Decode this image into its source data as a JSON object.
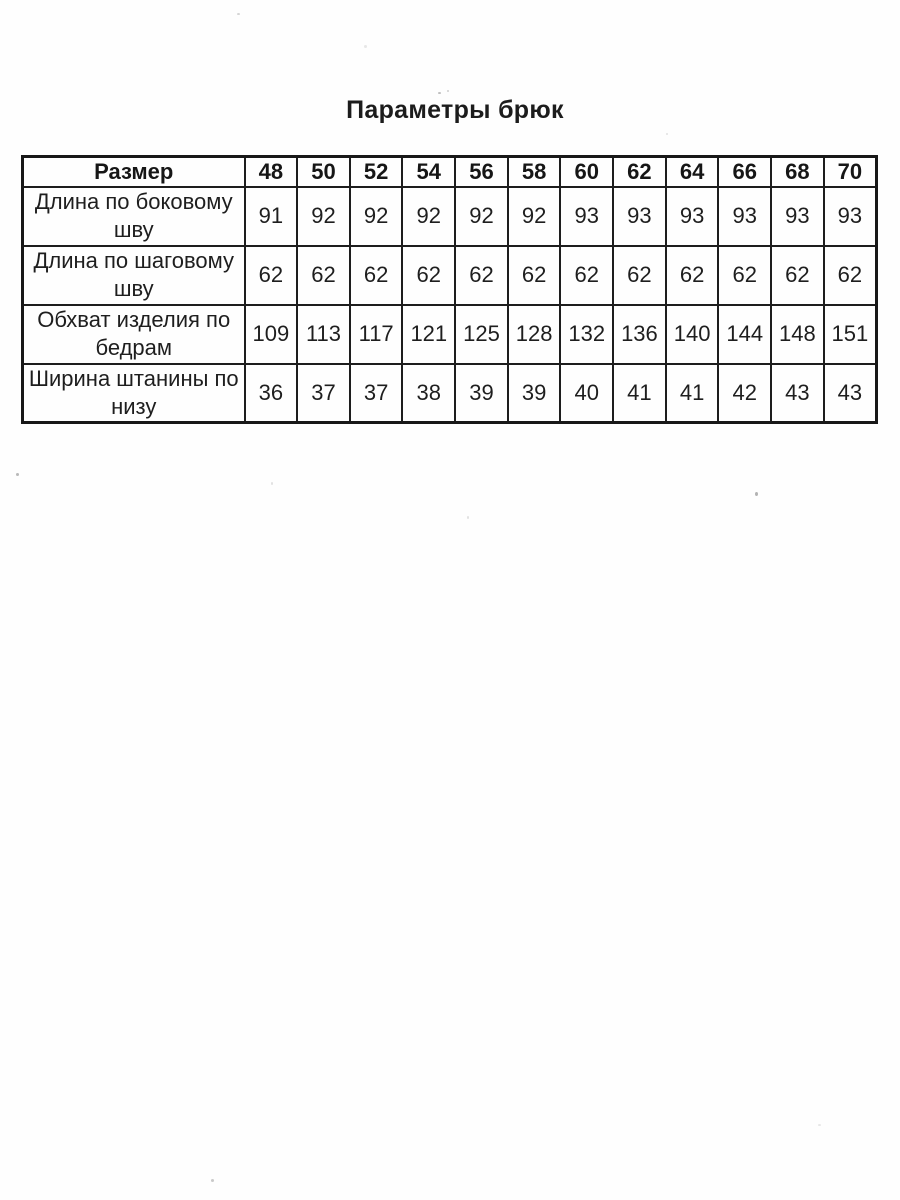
{
  "title": "Параметры брюк",
  "table": {
    "header": {
      "label": "Размер",
      "sizes": [
        "48",
        "50",
        "52",
        "54",
        "56",
        "58",
        "60",
        "62",
        "64",
        "66",
        "68",
        "70"
      ]
    },
    "rows": [
      {
        "label": "Длина по боковому шву",
        "values": [
          91,
          92,
          92,
          92,
          92,
          92,
          93,
          93,
          93,
          93,
          93,
          93
        ]
      },
      {
        "label": "Длина по шаговому шву",
        "values": [
          62,
          62,
          62,
          62,
          62,
          62,
          62,
          62,
          62,
          62,
          62,
          62
        ]
      },
      {
        "label": "Обхват изделия по бедрам",
        "values": [
          109,
          113,
          117,
          121,
          125,
          128,
          132,
          136,
          140,
          144,
          148,
          151
        ]
      },
      {
        "label": "Ширина штанины по низу",
        "values": [
          36,
          37,
          37,
          38,
          39,
          39,
          40,
          41,
          41,
          42,
          43,
          43
        ]
      }
    ]
  }
}
